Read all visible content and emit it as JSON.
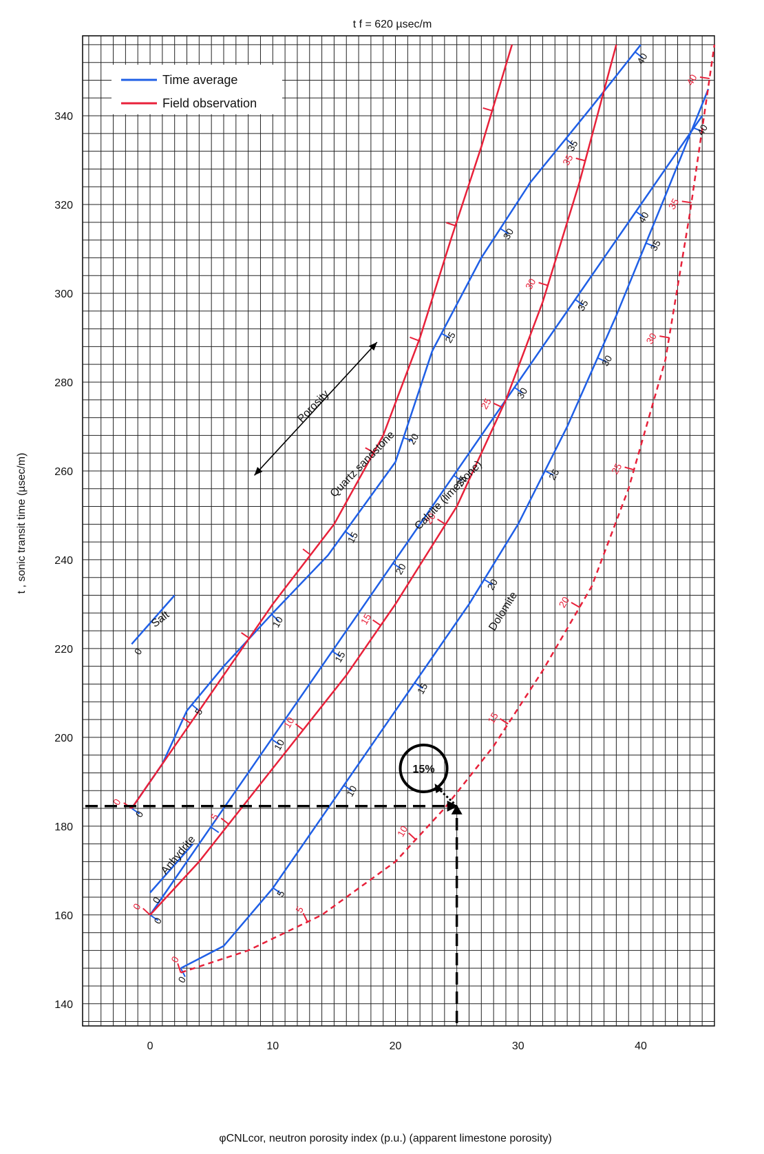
{
  "chart_data": {
    "type": "line",
    "title": "t f = 620 µsec/m",
    "xlabel": "φCNLcor, neutron porosity index (p.u.) (apparent limestone porosity)",
    "ylabel": "t , sonic transit time (µsec/m)",
    "xlim": [
      -5.5,
      46
    ],
    "ylim": [
      135,
      358
    ],
    "x_ticks": [
      0,
      10,
      20,
      30,
      40
    ],
    "y_ticks": [
      140,
      160,
      180,
      200,
      220,
      240,
      260,
      280,
      300,
      320,
      340
    ],
    "grid": true,
    "legend_position": "top-left",
    "legend": [
      {
        "label": "Time average",
        "color": "#1f5fe6"
      },
      {
        "label": "Field observation",
        "color": "#e8213a"
      }
    ],
    "series": [
      {
        "name": "Salt",
        "kind": "time-average",
        "color": "#1f5fe6",
        "x": [
          -1.5,
          2.0
        ],
        "y": [
          221,
          232
        ],
        "ticks": [],
        "tick_labels": [
          {
            "text": "0",
            "at": 0
          }
        ]
      },
      {
        "name": "Quartz sandstone",
        "kind": "time-average",
        "color": "#1f5fe6",
        "x": [
          -1.5,
          1.0,
          3.0,
          6.0,
          10.0,
          14.5,
          20.0,
          23.0,
          27.0,
          31.0,
          36.0,
          40.0
        ],
        "y": [
          184,
          194,
          206,
          216,
          228,
          241,
          262,
          287,
          308,
          325,
          342,
          356
        ],
        "ticks": [
          0,
          5,
          10,
          15,
          20,
          25,
          30,
          35,
          40
        ],
        "tick_positions": [
          0.0,
          0.13,
          0.26,
          0.38,
          0.5,
          0.62,
          0.75,
          0.87,
          0.99
        ],
        "tick_labels": [
          {
            "text": "0",
            "at": 0
          },
          {
            "text": "5",
            "at": 0.13
          },
          {
            "text": "10",
            "at": 0.26
          },
          {
            "text": "15",
            "at": 0.38
          },
          {
            "text": "20",
            "at": 0.5
          },
          {
            "text": "25",
            "at": 0.62
          },
          {
            "text": "30",
            "at": 0.75
          },
          {
            "text": "35",
            "at": 0.87
          },
          {
            "text": "40",
            "at": 0.99
          }
        ]
      },
      {
        "name": "Quartz sandstone (field)",
        "kind": "field",
        "color": "#e8213a",
        "x": [
          -1.5,
          2.0,
          6.0,
          10.0,
          15.0,
          19.0,
          22.0,
          24.5,
          27.0,
          29.5
        ],
        "y": [
          184,
          198,
          214,
          230,
          248,
          268,
          290,
          312,
          333,
          356
        ],
        "ticks": [
          0,
          5,
          10,
          15,
          20,
          25,
          30,
          35
        ],
        "tick_positions": [
          0.0,
          0.12,
          0.24,
          0.36,
          0.5,
          0.64,
          0.78,
          0.92
        ],
        "tick_labels": [
          {
            "text": "0",
            "at": 0.0
          }
        ]
      },
      {
        "name": "Calcite (limestone)",
        "kind": "time-average",
        "color": "#1f5fe6",
        "x": [
          0.0,
          4.0,
          8.0,
          12.0,
          16.0,
          20.0,
          25.0,
          30.0,
          35.0,
          40.0,
          45.0
        ],
        "y": [
          160,
          176,
          192,
          208,
          224,
          240,
          260,
          280,
          300,
          320,
          340
        ],
        "ticks": [
          0,
          5,
          10,
          15,
          20,
          25,
          30,
          35,
          40
        ],
        "tick_positions": [
          0.0,
          0.11,
          0.22,
          0.33,
          0.44,
          0.55,
          0.66,
          0.77,
          0.88
        ],
        "tick_labels": [
          {
            "text": "0",
            "at": 0
          },
          {
            "text": "10",
            "at": 0.22
          },
          {
            "text": "15",
            "at": 0.33
          },
          {
            "text": "20",
            "at": 0.44
          },
          {
            "text": "25",
            "at": 0.55
          },
          {
            "text": "30",
            "at": 0.66
          },
          {
            "text": "35",
            "at": 0.77
          },
          {
            "text": "40",
            "at": 0.88
          }
        ]
      },
      {
        "name": "Calcite (limestone) (field)",
        "kind": "field",
        "color": "#e8213a",
        "x": [
          0.0,
          4.0,
          8.0,
          12.0,
          16.0,
          20.0,
          25.0,
          29.0,
          32.0,
          35.0,
          38.0
        ],
        "y": [
          160,
          172,
          186,
          200,
          214,
          230,
          252,
          276,
          298,
          325,
          356
        ],
        "ticks": [
          0,
          5,
          10,
          15,
          20,
          25,
          30,
          35
        ],
        "tick_positions": [
          0.0,
          0.12,
          0.24,
          0.37,
          0.49,
          0.62,
          0.75,
          0.88
        ],
        "tick_labels": [
          {
            "text": "0",
            "at": 0.0
          },
          {
            "text": "5",
            "at": 0.12
          },
          {
            "text": "10",
            "at": 0.24
          },
          {
            "text": "15",
            "at": 0.37
          },
          {
            "text": "20",
            "at": 0.49
          },
          {
            "text": "25",
            "at": 0.62
          },
          {
            "text": "30",
            "at": 0.75
          },
          {
            "text": "35",
            "at": 0.88
          }
        ]
      },
      {
        "name": "Dolomite",
        "kind": "time-average",
        "color": "#1f5fe6",
        "x": [
          2.5,
          6.0,
          10.0,
          14.0,
          18.0,
          22.0,
          26.0,
          30.0,
          34.0,
          38.0,
          42.0,
          45.5
        ],
        "y": [
          148,
          153,
          166,
          182,
          198,
          214,
          230,
          248,
          270,
          295,
          322,
          346
        ],
        "ticks": [
          0,
          5,
          10,
          15,
          20,
          25,
          30,
          35,
          40
        ],
        "tick_positions": [
          0.0,
          0.12,
          0.24,
          0.36,
          0.48,
          0.6,
          0.72,
          0.84,
          0.96
        ],
        "tick_labels": [
          {
            "text": "0",
            "at": 0
          },
          {
            "text": "5",
            "at": 0.12
          },
          {
            "text": "10",
            "at": 0.24
          },
          {
            "text": "15",
            "at": 0.36
          },
          {
            "text": "20",
            "at": 0.48
          },
          {
            "text": "25",
            "at": 0.6
          },
          {
            "text": "30",
            "at": 0.72
          },
          {
            "text": "35",
            "at": 0.84
          },
          {
            "text": "40",
            "at": 0.96
          }
        ]
      },
      {
        "name": "Dolomite (field)",
        "kind": "field-dashed",
        "color": "#e8213a",
        "x": [
          2.5,
          8.0,
          14.0,
          20.0,
          24.0,
          28.0,
          32.0,
          36.0,
          39.0,
          42.0,
          44.0,
          46.0
        ],
        "y": [
          147,
          152,
          160,
          172,
          184,
          198,
          215,
          234,
          256,
          285,
          318,
          356
        ],
        "ticks": [
          0,
          5,
          10,
          15,
          20,
          25,
          30,
          35,
          40
        ],
        "tick_positions": [
          0.0,
          0.12,
          0.24,
          0.37,
          0.49,
          0.62,
          0.74,
          0.86,
          0.97
        ],
        "tick_labels": [
          {
            "text": "0",
            "at": 0.0
          },
          {
            "text": "5",
            "at": 0.12
          },
          {
            "text": "10",
            "at": 0.24
          },
          {
            "text": "15",
            "at": 0.37
          },
          {
            "text": "20",
            "at": 0.49
          },
          {
            "text": "25",
            "at": 0.62
          },
          {
            "text": "30",
            "at": 0.74
          },
          {
            "text": "35",
            "at": 0.86
          },
          {
            "text": "40",
            "at": 0.97
          }
        ]
      },
      {
        "name": "Anhydrite",
        "kind": "time-average",
        "color": "#1f5fe6",
        "x": [
          0.0,
          3.5
        ],
        "y": [
          165,
          176
        ],
        "ticks": [],
        "tick_labels": [
          {
            "text": "0",
            "at": 0
          }
        ]
      }
    ],
    "curve_labels": [
      {
        "text": "Salt",
        "x": 1.0,
        "y": 226,
        "angle": -38
      },
      {
        "text": "Quartz sandstone",
        "x": 17.5,
        "y": 261,
        "angle": -46
      },
      {
        "text": "Calcite (limestone)",
        "x": 24.5,
        "y": 254,
        "angle": -46
      },
      {
        "text": "Dolomite",
        "x": 29.0,
        "y": 228,
        "angle": -58
      },
      {
        "text": "Anhydrite",
        "x": 2.5,
        "y": 173,
        "angle": -50
      },
      {
        "text": "Porosity",
        "x": 13.5,
        "y": 274,
        "angle": -46
      }
    ],
    "porosity_arrow": {
      "x": [
        8.5,
        18.5
      ],
      "y": [
        259,
        289
      ]
    },
    "annotation": {
      "label": "15%",
      "circle_center": [
        22.3,
        193
      ],
      "point": [
        25.0,
        184.5
      ],
      "guide_y": 184.5,
      "guide_x": 25.0
    }
  }
}
